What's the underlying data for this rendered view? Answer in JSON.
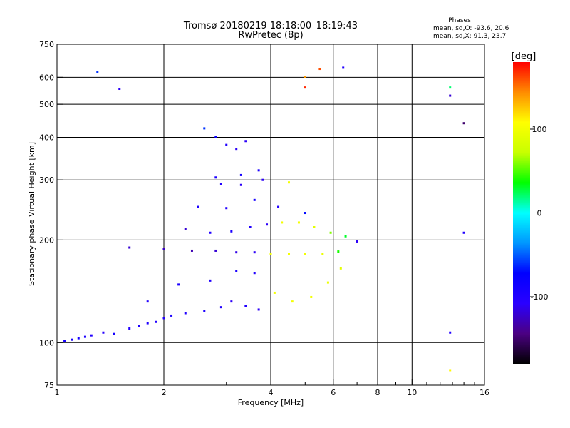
{
  "chart_data": {
    "type": "scatter",
    "title": "Tromsø 20180219 18:18:00–18:19:43",
    "subtitle": "RwPretec (8p)",
    "xlabel": "Frequency [MHz]",
    "ylabel": "Stationary phase Virtual Height [km]",
    "x_scale": "log2",
    "y_scale": "log",
    "xlim": [
      1,
      16
    ],
    "ylim": [
      75,
      750
    ],
    "x_ticks": [
      1,
      2,
      4,
      6,
      8,
      10,
      16
    ],
    "x_tick_labels": [
      "1",
      "2",
      "4",
      "6",
      "8",
      "10",
      "16"
    ],
    "y_ticks": [
      75,
      100,
      200,
      300,
      400,
      500,
      600,
      750
    ],
    "y_tick_labels": [
      "75",
      "100",
      "200",
      "300",
      "400",
      "500",
      "600",
      "750"
    ],
    "grid": true,
    "stats": {
      "title": "Phases",
      "line1": "mean, sd,O:  -93.6, 20.6",
      "line2": "mean, sd,X:  91.3, 23.7"
    },
    "colorbar": {
      "label": "[deg]",
      "range": [
        -180,
        180
      ],
      "ticks": [
        100,
        0,
        -100
      ],
      "tick_labels": [
        "100",
        "0",
        "-100"
      ],
      "colors": [
        "#000000",
        "#4b0082",
        "#2a00ff",
        "#0000ff",
        "#0096ff",
        "#00ffff",
        "#00ff00",
        "#c8ff00",
        "#ffff00",
        "#ff8c00",
        "#ff0000"
      ]
    },
    "series": [
      {
        "name": "",
        "points": [
          [
            1.05,
            101,
            -90
          ],
          [
            1.1,
            102,
            -92
          ],
          [
            1.15,
            103,
            -88
          ],
          [
            1.2,
            104,
            -95
          ],
          [
            1.25,
            105,
            -100
          ],
          [
            1.35,
            107,
            -105
          ],
          [
            1.45,
            106,
            -90
          ],
          [
            1.6,
            110,
            -100
          ],
          [
            1.7,
            112,
            -95
          ],
          [
            1.8,
            114,
            -98
          ],
          [
            1.9,
            115,
            -100
          ],
          [
            2.0,
            118,
            -100
          ],
          [
            2.1,
            120,
            -95
          ],
          [
            2.3,
            122,
            -100
          ],
          [
            2.6,
            124,
            -95
          ],
          [
            2.9,
            127,
            -100
          ],
          [
            3.1,
            132,
            -110
          ],
          [
            3.4,
            128,
            -100
          ],
          [
            3.7,
            125,
            -110
          ],
          [
            1.8,
            132,
            -100
          ],
          [
            2.2,
            148,
            -95
          ],
          [
            2.7,
            152,
            -100
          ],
          [
            3.2,
            162,
            -95
          ],
          [
            3.6,
            160,
            -100
          ],
          [
            1.6,
            190,
            -120
          ],
          [
            2.0,
            188,
            -125
          ],
          [
            2.4,
            186,
            -130
          ],
          [
            2.8,
            186,
            -120
          ],
          [
            3.2,
            184,
            -115
          ],
          [
            3.6,
            184,
            -110
          ],
          [
            4.0,
            182,
            100
          ],
          [
            4.5,
            182,
            100
          ],
          [
            5.0,
            182,
            100
          ],
          [
            5.6,
            182,
            95
          ],
          [
            6.2,
            185,
            40
          ],
          [
            2.3,
            215,
            -120
          ],
          [
            2.7,
            210,
            -100
          ],
          [
            3.1,
            212,
            -95
          ],
          [
            3.5,
            218,
            -100
          ],
          [
            3.9,
            222,
            -110
          ],
          [
            4.3,
            225,
            100
          ],
          [
            4.8,
            225,
            100
          ],
          [
            5.3,
            218,
            90
          ],
          [
            5.9,
            210,
            60
          ],
          [
            6.5,
            205,
            30
          ],
          [
            7.0,
            198,
            -110
          ],
          [
            2.5,
            250,
            -95
          ],
          [
            3.0,
            248,
            -100
          ],
          [
            3.6,
            262,
            -90
          ],
          [
            4.2,
            250,
            -100
          ],
          [
            5.0,
            240,
            -70
          ],
          [
            2.9,
            292,
            -100
          ],
          [
            3.3,
            290,
            -110
          ],
          [
            3.8,
            300,
            -110
          ],
          [
            4.5,
            295,
            100
          ],
          [
            2.8,
            305,
            -95
          ],
          [
            3.3,
            310,
            -90
          ],
          [
            3.7,
            320,
            -95
          ],
          [
            2.6,
            425,
            -60
          ],
          [
            2.8,
            400,
            -80
          ],
          [
            3.0,
            380,
            -100
          ],
          [
            3.2,
            370,
            -110
          ],
          [
            3.4,
            390,
            -110
          ],
          [
            4.1,
            140,
            100
          ],
          [
            4.6,
            132,
            100
          ],
          [
            5.2,
            136,
            100
          ],
          [
            5.8,
            150,
            95
          ],
          [
            6.3,
            165,
            90
          ],
          [
            5.0,
            600,
            140
          ],
          [
            5.0,
            560,
            170
          ],
          [
            6.4,
            640,
            -100
          ],
          [
            5.5,
            635,
            160
          ],
          [
            12.8,
            560,
            20
          ],
          [
            12.8,
            530,
            -120
          ],
          [
            14.0,
            440,
            -150
          ],
          [
            14.0,
            210,
            -100
          ],
          [
            12.8,
            107,
            -100
          ],
          [
            12.8,
            83,
            110
          ],
          [
            1.3,
            620,
            -60
          ],
          [
            1.5,
            555,
            -110
          ]
        ]
      }
    ]
  }
}
